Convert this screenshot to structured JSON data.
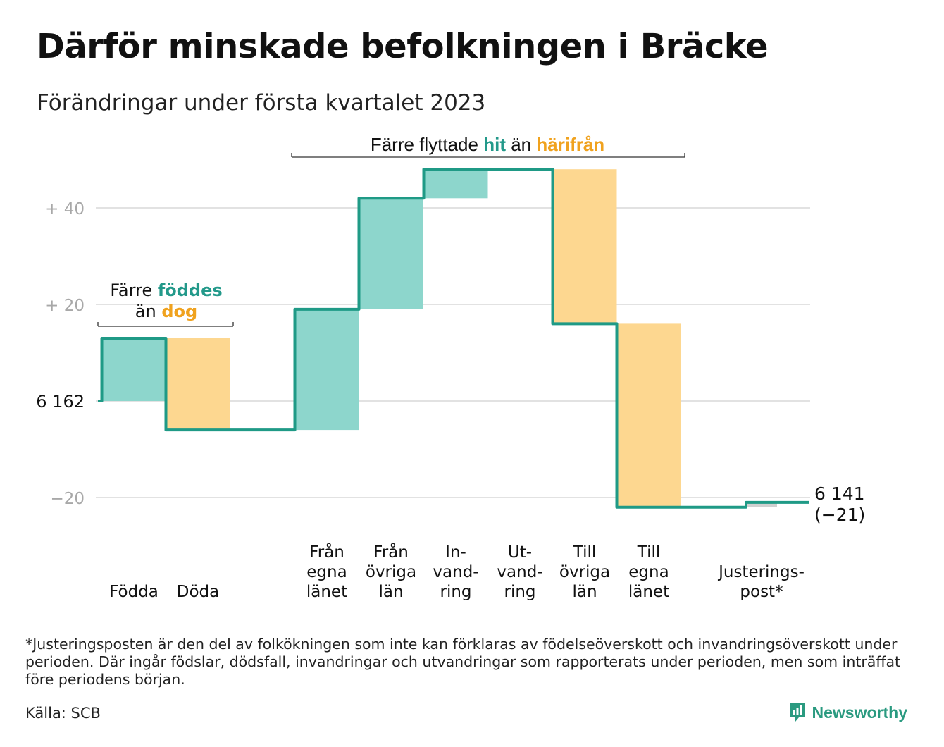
{
  "header": {
    "title": "Därför minskade befolkningen i Bräcke",
    "subtitle": "Förändringar under första kvartalet 2023"
  },
  "annotations": {
    "births_deaths": {
      "part1": "Färre ",
      "part2": "föddes",
      "part3": "än ",
      "part4": "dog"
    },
    "migration": {
      "part1": "Färre flyttade ",
      "part2": "hit",
      "part3": " än ",
      "part4": "härifrån"
    }
  },
  "start_label": "6 162",
  "end_label": {
    "line1": "6 141",
    "line2": "(−21)"
  },
  "footer": {
    "footnote": "*Justeringsposten är den del av folkökningen som inte kan förklaras av födelseöverskott och invandringsöverskott under perioden. Där ingår födslar, dödsfall, invandringar och utvandringar som rapporterats under perioden, men som inträffat före periodens början.",
    "source": "Källa: SCB",
    "brand": "Newsworthy"
  },
  "colors": {
    "increase": "#8dd6cc",
    "decrease": "#fdd790",
    "line": "#1f9a86",
    "adjustment": "#d0d0d0",
    "grid": "#e2e2e2",
    "tick_text": "#a8a8a8",
    "teal_text": "#23998a",
    "orange_text": "#f0a21e"
  },
  "chart_data": {
    "type": "waterfall",
    "title": "Därför minskade befolkningen i Bräcke",
    "subtitle": "Förändringar under första kvartalet 2023",
    "baseline": 6162,
    "end_value": 6141,
    "net_change": -21,
    "yticks": [
      {
        "value": 40,
        "label": "+ 40"
      },
      {
        "value": 20,
        "label": "+ 20"
      },
      {
        "value": 0,
        "label": "6 162"
      },
      {
        "value": -20,
        "label": "−20"
      }
    ],
    "ylim": [
      -25,
      48
    ],
    "grid": true,
    "steps": [
      {
        "label": [
          "Födda"
        ],
        "change": 13
      },
      {
        "label": [
          "Döda"
        ],
        "change": -19
      },
      {
        "label": [
          "Från",
          "egna",
          "länet"
        ],
        "change": 25
      },
      {
        "label": [
          "Från",
          "övriga",
          "län"
        ],
        "change": 23
      },
      {
        "label": [
          "In-",
          "vand-",
          "ring"
        ],
        "change": 6
      },
      {
        "label": [
          "Ut-",
          "vand-",
          "ring"
        ],
        "change": 0
      },
      {
        "label": [
          "Till",
          "övriga",
          "län"
        ],
        "change": -32
      },
      {
        "label": [
          "Till",
          "egna",
          "länet"
        ],
        "change": -38
      },
      {
        "label": [
          "Justerings-",
          "post*"
        ],
        "change": 1
      }
    ]
  }
}
